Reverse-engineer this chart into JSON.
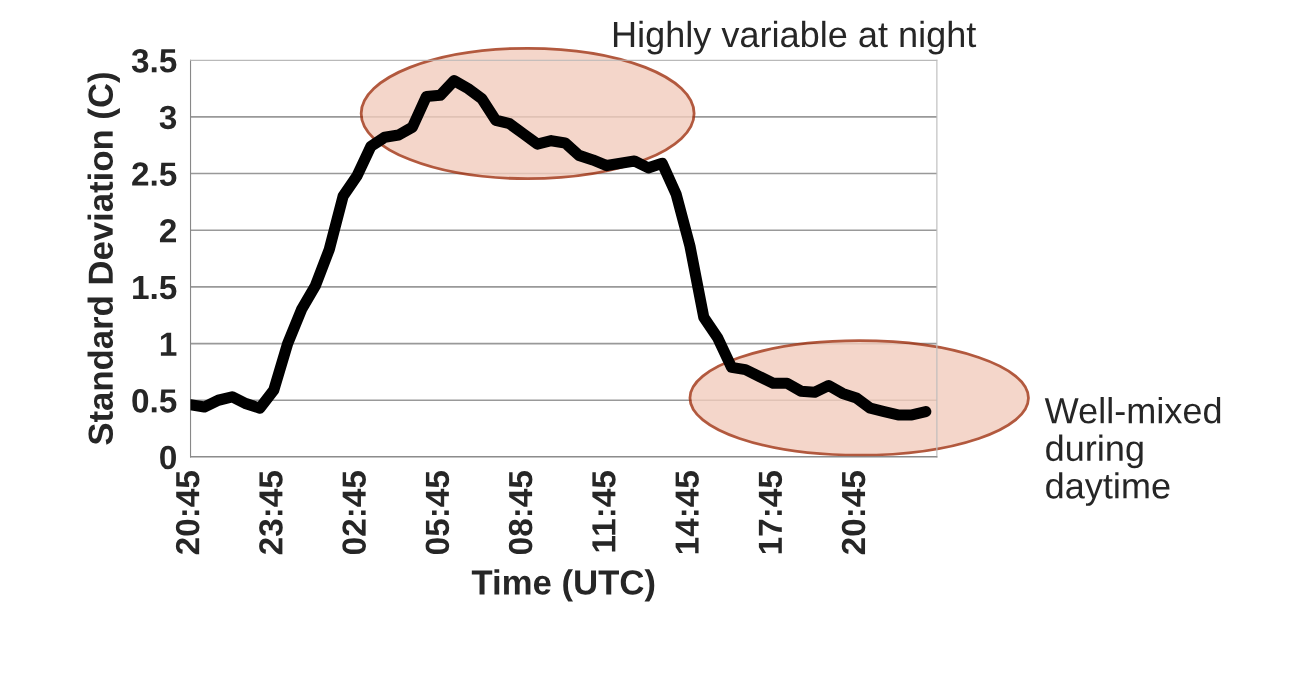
{
  "chart_data": {
    "type": "line",
    "xlabel": "Time (UTC)",
    "ylabel": "Standard Deviation (C)",
    "annotations": [
      "Highly variable at night",
      "Well-mixed\nduring\ndaytime"
    ],
    "categories": [
      "20:45",
      null,
      null,
      null,
      null,
      null,
      "23:45",
      null,
      null,
      null,
      null,
      null,
      "02:45",
      null,
      null,
      null,
      null,
      null,
      "05:45",
      null,
      null,
      null,
      null,
      null,
      "08:45",
      null,
      null,
      null,
      null,
      null,
      "11:45",
      null,
      null,
      null,
      null,
      null,
      "14:45",
      null,
      null,
      null,
      null,
      null,
      "17:45",
      null,
      null,
      null,
      null,
      null,
      "20:45",
      null,
      null,
      null,
      null,
      null
    ],
    "series": [
      {
        "color": "#000000",
        "values": [
          0.46,
          0.44,
          0.5,
          0.53,
          0.47,
          0.43,
          0.59,
          1.0,
          1.3,
          1.51,
          1.83,
          2.3,
          2.48,
          2.74,
          2.82,
          2.84,
          2.91,
          3.18,
          3.19,
          3.32,
          3.25,
          3.16,
          2.97,
          2.94,
          2.85,
          2.76,
          2.79,
          2.77,
          2.66,
          2.62,
          2.57,
          2.59,
          2.61,
          2.55,
          2.59,
          2.32,
          1.86,
          1.23,
          1.05,
          0.79,
          0.77,
          0.71,
          0.65,
          0.65,
          0.58,
          0.57,
          0.63,
          0.56,
          0.52,
          0.43,
          0.4,
          0.37,
          0.37,
          0.4
        ]
      }
    ],
    "ylim": [
      0,
      3.5
    ],
    "yticks": [
      0,
      0.5,
      1,
      1.5,
      2,
      2.5,
      3,
      3.5
    ],
    "grid": "y",
    "legend": false,
    "marker": "none",
    "line_style": "solid"
  }
}
